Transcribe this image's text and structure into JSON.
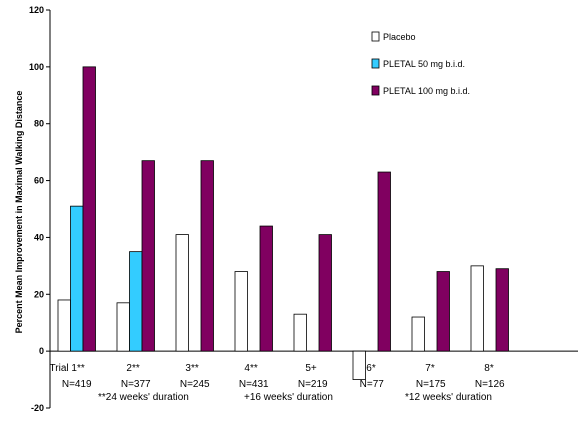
{
  "chart_data": {
    "type": "bar",
    "ylabel": "Percent Mean Improvement in Maximal Walking Distance",
    "ylim": [
      -20,
      120
    ],
    "yticks": [
      -20,
      0,
      20,
      40,
      60,
      80,
      100,
      120
    ],
    "grid": false,
    "legend_position": "top-right",
    "categories": [
      "Trial 1**",
      "2**",
      "3**",
      "4**",
      "5+",
      "6*",
      "7*",
      "8*"
    ],
    "n_labels": [
      "N=419",
      "N=377",
      "N=245",
      "N=431",
      "N=219",
      "N=77",
      "N=175",
      "N=126"
    ],
    "series": [
      {
        "name": "Placebo",
        "color": "#ffffff",
        "values": [
          18,
          17,
          41,
          28,
          13,
          -10,
          12,
          30
        ]
      },
      {
        "name": "PLETAL 50 mg b.i.d.",
        "color": "#33ccff",
        "values": [
          51,
          35,
          null,
          null,
          null,
          null,
          null,
          null
        ]
      },
      {
        "name": "PLETAL 100 mg b.i.d.",
        "color": "#800060",
        "values": [
          100,
          67,
          67,
          44,
          41,
          63,
          28,
          29
        ]
      }
    ],
    "duration_notes": [
      "**24 weeks' duration",
      "+16 weeks' duration",
      "*12 weeks' duration"
    ]
  }
}
